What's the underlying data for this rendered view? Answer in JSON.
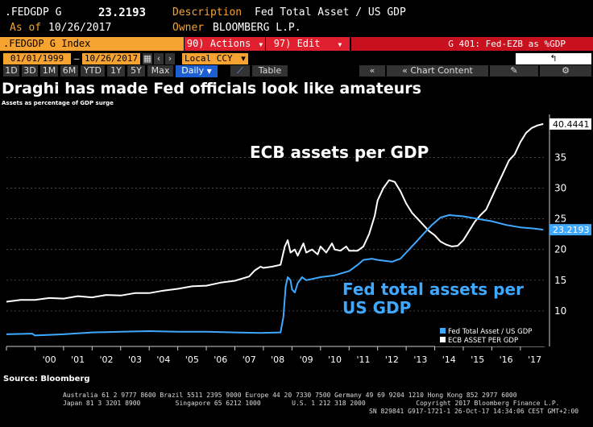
{
  "header": {
    "ticker": ".FEDGDP G",
    "value": "23.2193",
    "description_label": "Description",
    "description": "Fed Total Asset / US GDP",
    "asof_label": "As of",
    "asof": "10/26/2017",
    "owner_label": "Owner",
    "owner": "BLOOMBERG L.P."
  },
  "toolbar": {
    "index_label": ".FEDGDP G Index",
    "actions_label": "90) Actions",
    "edit_label": "97) Edit",
    "chart_name": "G 401: Fed-EZB as %GDP"
  },
  "controls": {
    "start_date": "01/01/1999",
    "end_date": "10/26/2017",
    "currency": "Local CCY",
    "ranges": [
      "1D",
      "3D",
      "1M",
      "6M",
      "YTD",
      "1Y",
      "5Y",
      "Max"
    ],
    "period": "Daily",
    "table_label": "Table",
    "chart_content_label": "Chart Content"
  },
  "headline": "Draghi has made Fed officials look like amateurs",
  "subheadline": "Assets as percentage of GDP surge",
  "source": "Source: Bloomberg",
  "footer": {
    "line1": "Australia 61 2 9777 8600 Brazil 5511 2395 9000 Europe 44 20 7330 7500 Germany 49 69 9204 1210 Hong Kong 852 2977 6000",
    "line2": "Japan 81 3 3201 8900         Singapore 65 6212 1000        U.S. 1 212 318 2000             Copyright 2017 Bloomberg Finance L.P.",
    "line3": "SN 829841 G917-1721-1 26-Oct-17 14:34:06 CEST GMT+2:00"
  },
  "colors": {
    "ecb": "#ffffff",
    "fed": "#3fa9ff",
    "orange": "#f7a331",
    "red": "#e0202e"
  },
  "chart_data": {
    "type": "line",
    "title": "Draghi has made Fed officials look like amateurs",
    "subtitle": "Assets as percentage of GDP surge",
    "xlabel": "",
    "ylabel": "",
    "xlim": [
      1999.0,
      2017.85
    ],
    "ylim": [
      5,
      42
    ],
    "y_ticks": [
      10,
      15,
      20,
      25,
      30,
      35
    ],
    "x_ticks": [
      {
        "label": "'00",
        "x": 2000.5
      },
      {
        "label": "'01",
        "x": 2001.5
      },
      {
        "label": "'02",
        "x": 2002.5
      },
      {
        "label": "'03",
        "x": 2003.5
      },
      {
        "label": "'04",
        "x": 2004.5
      },
      {
        "label": "'05",
        "x": 2005.5
      },
      {
        "label": "'06",
        "x": 2006.5
      },
      {
        "label": "'07",
        "x": 2007.5
      },
      {
        "label": "'08",
        "x": 2008.5
      },
      {
        "label": "'09",
        "x": 2009.5
      },
      {
        "label": "'10",
        "x": 2010.5
      },
      {
        "label": "'11",
        "x": 2011.5
      },
      {
        "label": "'12",
        "x": 2012.5
      },
      {
        "label": "'13",
        "x": 2013.5
      },
      {
        "label": "'14",
        "x": 2014.5
      },
      {
        "label": "'15",
        "x": 2015.5
      },
      {
        "label": "'16",
        "x": 2016.5
      },
      {
        "label": "'17",
        "x": 2017.5
      }
    ],
    "legend": {
      "position": "bottom-right",
      "entries": [
        "Fed Total Asset / US GDP",
        "ECB ASSET PER GDP"
      ]
    },
    "annotations": [
      "ECB assets per GDP",
      "Fed total assets per",
      "US GDP"
    ],
    "last_values": {
      "ecb": "40.4441",
      "fed": "23.2193"
    },
    "series": [
      {
        "name": "ECB ASSET PER GDP",
        "color": "#ffffff",
        "points": [
          [
            1999.0,
            11.5
          ],
          [
            1999.5,
            11.8
          ],
          [
            2000.0,
            11.8
          ],
          [
            2000.5,
            12.1
          ],
          [
            2001.0,
            12.0
          ],
          [
            2001.5,
            12.4
          ],
          [
            2002.0,
            12.2
          ],
          [
            2002.5,
            12.6
          ],
          [
            2003.0,
            12.5
          ],
          [
            2003.5,
            12.9
          ],
          [
            2004.0,
            12.9
          ],
          [
            2004.5,
            13.3
          ],
          [
            2005.0,
            13.6
          ],
          [
            2005.5,
            14.0
          ],
          [
            2006.0,
            14.1
          ],
          [
            2006.5,
            14.6
          ],
          [
            2007.0,
            14.9
          ],
          [
            2007.5,
            15.6
          ],
          [
            2007.7,
            16.6
          ],
          [
            2007.9,
            17.2
          ],
          [
            2008.0,
            17.0
          ],
          [
            2008.3,
            17.2
          ],
          [
            2008.6,
            17.5
          ],
          [
            2008.75,
            20.5
          ],
          [
            2008.85,
            21.5
          ],
          [
            2008.95,
            19.5
          ],
          [
            2009.1,
            20.0
          ],
          [
            2009.2,
            19.0
          ],
          [
            2009.4,
            21.0
          ],
          [
            2009.5,
            19.5
          ],
          [
            2009.7,
            20.0
          ],
          [
            2009.9,
            19.2
          ],
          [
            2010.0,
            20.5
          ],
          [
            2010.2,
            19.5
          ],
          [
            2010.4,
            21.0
          ],
          [
            2010.5,
            20.0
          ],
          [
            2010.7,
            19.8
          ],
          [
            2010.9,
            20.5
          ],
          [
            2011.0,
            19.8
          ],
          [
            2011.3,
            19.8
          ],
          [
            2011.5,
            20.5
          ],
          [
            2011.7,
            22.5
          ],
          [
            2011.9,
            25.5
          ],
          [
            2012.0,
            28.0
          ],
          [
            2012.2,
            30.0
          ],
          [
            2012.4,
            31.3
          ],
          [
            2012.6,
            31.0
          ],
          [
            2012.8,
            29.5
          ],
          [
            2013.0,
            27.5
          ],
          [
            2013.2,
            26.0
          ],
          [
            2013.4,
            25.0
          ],
          [
            2013.6,
            24.0
          ],
          [
            2013.8,
            23.0
          ],
          [
            2014.0,
            22.3
          ],
          [
            2014.2,
            21.3
          ],
          [
            2014.4,
            20.8
          ],
          [
            2014.6,
            20.5
          ],
          [
            2014.8,
            20.6
          ],
          [
            2015.0,
            21.5
          ],
          [
            2015.2,
            23.0
          ],
          [
            2015.4,
            24.5
          ],
          [
            2015.6,
            25.6
          ],
          [
            2015.8,
            26.5
          ],
          [
            2016.0,
            28.5
          ],
          [
            2016.2,
            30.5
          ],
          [
            2016.4,
            32.5
          ],
          [
            2016.6,
            34.5
          ],
          [
            2016.8,
            35.5
          ],
          [
            2017.0,
            37.5
          ],
          [
            2017.2,
            39.0
          ],
          [
            2017.4,
            39.8
          ],
          [
            2017.6,
            40.2
          ],
          [
            2017.8,
            40.44
          ]
        ]
      },
      {
        "name": "Fed Total Asset / US GDP",
        "color": "#3fa9ff",
        "points": [
          [
            1999.0,
            6.2
          ],
          [
            1999.9,
            6.3
          ],
          [
            2000.0,
            6.0
          ],
          [
            2001.0,
            6.2
          ],
          [
            2002.0,
            6.5
          ],
          [
            2003.0,
            6.6
          ],
          [
            2004.0,
            6.7
          ],
          [
            2005.0,
            6.6
          ],
          [
            2006.0,
            6.6
          ],
          [
            2007.0,
            6.5
          ],
          [
            2007.9,
            6.4
          ],
          [
            2008.6,
            6.5
          ],
          [
            2008.7,
            9.0
          ],
          [
            2008.78,
            14.0
          ],
          [
            2008.85,
            15.5
          ],
          [
            2008.95,
            15.0
          ],
          [
            2009.0,
            13.5
          ],
          [
            2009.1,
            13.0
          ],
          [
            2009.2,
            14.5
          ],
          [
            2009.35,
            15.5
          ],
          [
            2009.5,
            15.0
          ],
          [
            2009.7,
            15.2
          ],
          [
            2010.0,
            15.5
          ],
          [
            2010.5,
            15.8
          ],
          [
            2010.8,
            16.2
          ],
          [
            2011.0,
            16.5
          ],
          [
            2011.3,
            17.5
          ],
          [
            2011.5,
            18.3
          ],
          [
            2011.8,
            18.5
          ],
          [
            2012.0,
            18.3
          ],
          [
            2012.5,
            18.0
          ],
          [
            2012.8,
            18.5
          ],
          [
            2013.0,
            19.5
          ],
          [
            2013.3,
            21.0
          ],
          [
            2013.6,
            22.5
          ],
          [
            2013.9,
            24.0
          ],
          [
            2014.2,
            25.2
          ],
          [
            2014.5,
            25.6
          ],
          [
            2015.0,
            25.4
          ],
          [
            2015.5,
            25.0
          ],
          [
            2016.0,
            24.6
          ],
          [
            2016.5,
            24.0
          ],
          [
            2017.0,
            23.6
          ],
          [
            2017.5,
            23.4
          ],
          [
            2017.8,
            23.22
          ]
        ]
      }
    ]
  }
}
